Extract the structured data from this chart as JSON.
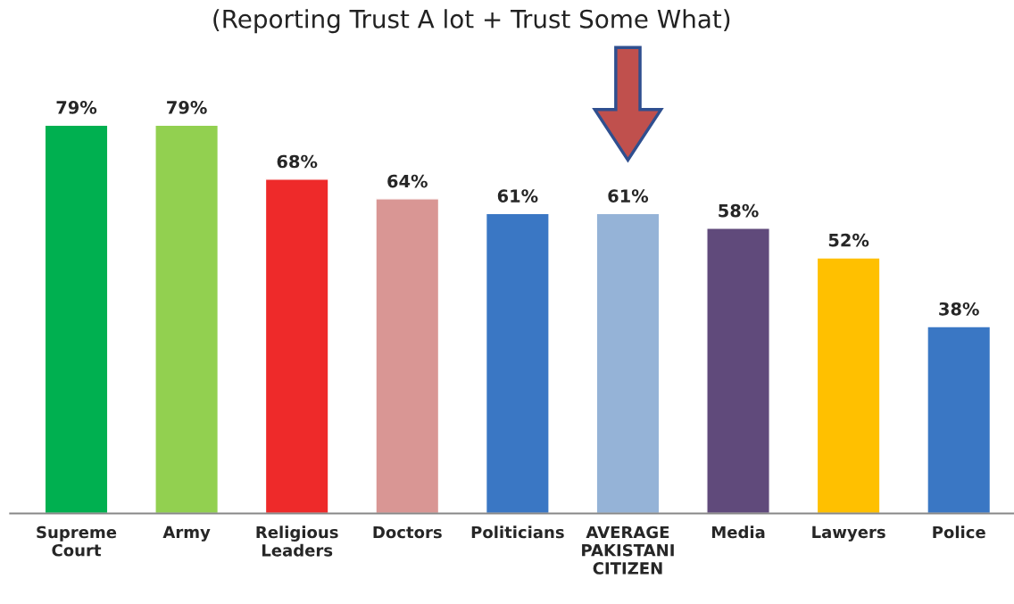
{
  "chart_data": {
    "type": "bar",
    "title": "(Reporting Trust A lot + Trust Some What)",
    "categories": [
      "Supreme\nCourt",
      "Army",
      "Religious\nLeaders",
      "Doctors",
      "Politicians",
      "AVERAGE\nPAKISTANI\nCITIZEN",
      "Media",
      "Lawyers",
      "Police"
    ],
    "values": [
      79,
      79,
      68,
      64,
      61,
      61,
      58,
      52,
      38
    ],
    "value_labels": [
      "79%",
      "79%",
      "68%",
      "64%",
      "61%",
      "61%",
      "58%",
      "52%",
      "38%"
    ],
    "colors": [
      "#00b050",
      "#92d050",
      "#ee2a2a",
      "#d99694",
      "#3a77c4",
      "#95b3d7",
      "#604a7b",
      "#ffc000",
      "#3a77c4"
    ],
    "grid": false,
    "legend": false
  }
}
